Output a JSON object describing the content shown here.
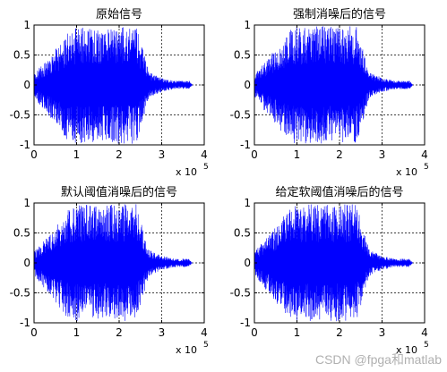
{
  "figure": {
    "background": "#ffffff",
    "axes_color": "#000000",
    "signal_color": "#0000ff"
  },
  "watermark": "CSDN @fpga和matlab",
  "chart_data": [
    {
      "type": "line",
      "title": "原始信号",
      "xlim": [
        0,
        400000
      ],
      "ylim": [
        -1,
        1
      ],
      "xticks": [
        0,
        100000,
        200000,
        300000,
        400000
      ],
      "xtick_labels": [
        "0",
        "1",
        "2",
        "3",
        "4"
      ],
      "yticks": [
        -1,
        -0.5,
        0,
        0.5,
        1
      ],
      "ytick_labels": [
        "-1",
        "-0.5",
        "0",
        "0.5",
        "1"
      ],
      "x_exponent_base": "x 10",
      "x_exponent_power": "5",
      "grid": true,
      "grid_style": "dotted",
      "series": [
        {
          "envelope_points": [
            [
              0,
              0.18
            ],
            [
              20000,
              0.35
            ],
            [
              50000,
              0.6
            ],
            [
              80000,
              0.9
            ],
            [
              100000,
              0.98
            ],
            [
              150000,
              0.98
            ],
            [
              200000,
              0.98
            ],
            [
              240000,
              0.98
            ],
            [
              255000,
              0.6
            ],
            [
              270000,
              0.22
            ],
            [
              300000,
              0.12
            ],
            [
              330000,
              0.07
            ],
            [
              365000,
              0.07
            ],
            [
              372000,
              0.0
            ]
          ],
          "envelope_points_min": [
            [
              0,
              -0.2
            ],
            [
              20000,
              -0.4
            ],
            [
              50000,
              -0.65
            ],
            [
              80000,
              -0.95
            ],
            [
              100000,
              -0.98
            ],
            [
              150000,
              -0.98
            ],
            [
              200000,
              -0.98
            ],
            [
              240000,
              -0.98
            ],
            [
              255000,
              -0.6
            ],
            [
              270000,
              -0.22
            ],
            [
              300000,
              -0.12
            ],
            [
              330000,
              -0.07
            ],
            [
              365000,
              -0.07
            ],
            [
              372000,
              0.0
            ]
          ]
        }
      ]
    },
    {
      "type": "line",
      "title": "强制消噪后的信号",
      "xlim": [
        0,
        400000
      ],
      "ylim": [
        -1,
        1
      ],
      "xticks": [
        0,
        100000,
        200000,
        300000,
        400000
      ],
      "xtick_labels": [
        "0",
        "1",
        "2",
        "3",
        "4"
      ],
      "yticks": [
        -1,
        -0.5,
        0,
        0.5,
        1
      ],
      "ytick_labels": [
        "-1",
        "-0.5",
        "0",
        "0.5",
        "1"
      ],
      "x_exponent_base": "x 10",
      "x_exponent_power": "5",
      "grid": true,
      "grid_style": "dotted",
      "series": [
        {
          "envelope_points": [
            [
              0,
              0.18
            ],
            [
              20000,
              0.35
            ],
            [
              50000,
              0.6
            ],
            [
              80000,
              0.9
            ],
            [
              100000,
              0.98
            ],
            [
              150000,
              0.98
            ],
            [
              200000,
              0.98
            ],
            [
              240000,
              0.98
            ],
            [
              255000,
              0.6
            ],
            [
              270000,
              0.22
            ],
            [
              300000,
              0.12
            ],
            [
              330000,
              0.07
            ],
            [
              365000,
              0.07
            ],
            [
              372000,
              0.0
            ]
          ],
          "envelope_points_min": [
            [
              0,
              -0.2
            ],
            [
              20000,
              -0.4
            ],
            [
              50000,
              -0.65
            ],
            [
              80000,
              -0.95
            ],
            [
              100000,
              -0.98
            ],
            [
              150000,
              -0.98
            ],
            [
              200000,
              -0.98
            ],
            [
              240000,
              -0.98
            ],
            [
              255000,
              -0.6
            ],
            [
              270000,
              -0.22
            ],
            [
              300000,
              -0.12
            ],
            [
              330000,
              -0.07
            ],
            [
              365000,
              -0.07
            ],
            [
              372000,
              0.0
            ]
          ]
        }
      ]
    },
    {
      "type": "line",
      "title": "默认阈值消噪后的信号",
      "xlim": [
        0,
        400000
      ],
      "ylim": [
        -1,
        1
      ],
      "xticks": [
        0,
        100000,
        200000,
        300000,
        400000
      ],
      "xtick_labels": [
        "0",
        "1",
        "2",
        "3",
        "4"
      ],
      "yticks": [
        -1,
        -0.5,
        0,
        0.5,
        1
      ],
      "ytick_labels": [
        "-1",
        "-0.5",
        "0",
        "0.5",
        "1"
      ],
      "x_exponent_base": "x 10",
      "x_exponent_power": "5",
      "grid": true,
      "grid_style": "dotted",
      "series": [
        {
          "envelope_points": [
            [
              0,
              0.18
            ],
            [
              20000,
              0.35
            ],
            [
              50000,
              0.6
            ],
            [
              80000,
              0.9
            ],
            [
              100000,
              0.98
            ],
            [
              150000,
              0.98
            ],
            [
              200000,
              0.98
            ],
            [
              240000,
              0.98
            ],
            [
              255000,
              0.6
            ],
            [
              270000,
              0.22
            ],
            [
              300000,
              0.12
            ],
            [
              330000,
              0.07
            ],
            [
              365000,
              0.07
            ],
            [
              372000,
              0.0
            ]
          ],
          "envelope_points_min": [
            [
              0,
              -0.2
            ],
            [
              20000,
              -0.4
            ],
            [
              50000,
              -0.65
            ],
            [
              80000,
              -0.95
            ],
            [
              100000,
              -0.98
            ],
            [
              150000,
              -0.98
            ],
            [
              200000,
              -0.98
            ],
            [
              240000,
              -0.98
            ],
            [
              255000,
              -0.6
            ],
            [
              270000,
              -0.22
            ],
            [
              300000,
              -0.12
            ],
            [
              330000,
              -0.07
            ],
            [
              365000,
              -0.07
            ],
            [
              372000,
              0.0
            ]
          ]
        }
      ]
    },
    {
      "type": "line",
      "title": "给定软阈值消噪后的信号",
      "xlim": [
        0,
        400000
      ],
      "ylim": [
        -1,
        1
      ],
      "xticks": [
        0,
        100000,
        200000,
        300000,
        400000
      ],
      "xtick_labels": [
        "0",
        "1",
        "2",
        "3",
        "4"
      ],
      "yticks": [
        -1,
        -0.5,
        0,
        0.5,
        1
      ],
      "ytick_labels": [
        "-1",
        "-0.5",
        "0",
        "0.5",
        "1"
      ],
      "x_exponent_base": "x 10",
      "x_exponent_power": "5",
      "grid": true,
      "grid_style": "dotted",
      "series": [
        {
          "envelope_points": [
            [
              0,
              0.18
            ],
            [
              20000,
              0.35
            ],
            [
              50000,
              0.6
            ],
            [
              80000,
              0.9
            ],
            [
              100000,
              0.98
            ],
            [
              150000,
              0.98
            ],
            [
              200000,
              0.98
            ],
            [
              240000,
              0.98
            ],
            [
              255000,
              0.6
            ],
            [
              270000,
              0.22
            ],
            [
              300000,
              0.12
            ],
            [
              330000,
              0.07
            ],
            [
              365000,
              0.07
            ],
            [
              372000,
              0.0
            ]
          ],
          "envelope_points_min": [
            [
              0,
              -0.2
            ],
            [
              20000,
              -0.4
            ],
            [
              50000,
              -0.65
            ],
            [
              80000,
              -0.95
            ],
            [
              100000,
              -0.98
            ],
            [
              150000,
              -0.98
            ],
            [
              200000,
              -0.98
            ],
            [
              240000,
              -0.98
            ],
            [
              255000,
              -0.6
            ],
            [
              270000,
              -0.22
            ],
            [
              300000,
              -0.12
            ],
            [
              330000,
              -0.07
            ],
            [
              365000,
              -0.07
            ],
            [
              372000,
              0.0
            ]
          ]
        }
      ]
    }
  ]
}
